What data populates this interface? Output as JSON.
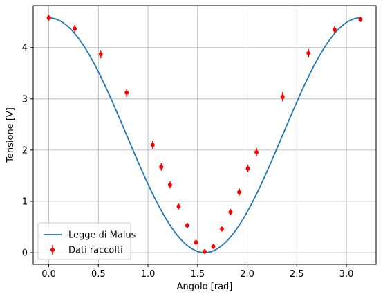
{
  "chart_data": {
    "type": "scatter",
    "xlabel": "Angolo [rad]",
    "ylabel": "Tensione [V]",
    "xlim": [
      -0.157,
      3.299
    ],
    "ylim": [
      -0.23,
      4.82
    ],
    "xticks": [
      0.0,
      0.5,
      1.0,
      1.5,
      2.0,
      2.5,
      3.0
    ],
    "xtick_labels": [
      "0.0",
      "0.5",
      "1.0",
      "1.5",
      "2.0",
      "2.5",
      "3.0"
    ],
    "yticks": [
      0,
      1,
      2,
      3,
      4
    ],
    "ytick_labels": [
      "0",
      "1",
      "2",
      "3",
      "4"
    ],
    "grid": true,
    "legend_position": "lower-left",
    "series": [
      {
        "name": "Legge di Malus",
        "kind": "line",
        "color": "#1f77b4",
        "model": "A*cos^2(x)",
        "amplitude": 4.58,
        "x_range": [
          0,
          3.1416
        ]
      },
      {
        "name": "Dati raccolti",
        "kind": "errorbar",
        "color": "#ff0000",
        "x": [
          0.0,
          0.262,
          0.524,
          0.785,
          1.047,
          1.134,
          1.222,
          1.309,
          1.396,
          1.484,
          1.571,
          1.658,
          1.745,
          1.833,
          1.92,
          2.007,
          2.094,
          2.356,
          2.618,
          2.88,
          3.142
        ],
        "y": [
          4.58,
          4.37,
          3.87,
          3.12,
          2.1,
          1.67,
          1.32,
          0.9,
          0.53,
          0.2,
          0.02,
          0.12,
          0.46,
          0.79,
          1.18,
          1.64,
          1.96,
          3.04,
          3.89,
          4.35,
          4.55
        ],
        "yerr": [
          0.06,
          0.07,
          0.08,
          0.08,
          0.08,
          0.07,
          0.07,
          0.06,
          0.05,
          0.05,
          0.05,
          0.05,
          0.05,
          0.06,
          0.07,
          0.07,
          0.08,
          0.09,
          0.08,
          0.07,
          0.05
        ]
      }
    ]
  }
}
